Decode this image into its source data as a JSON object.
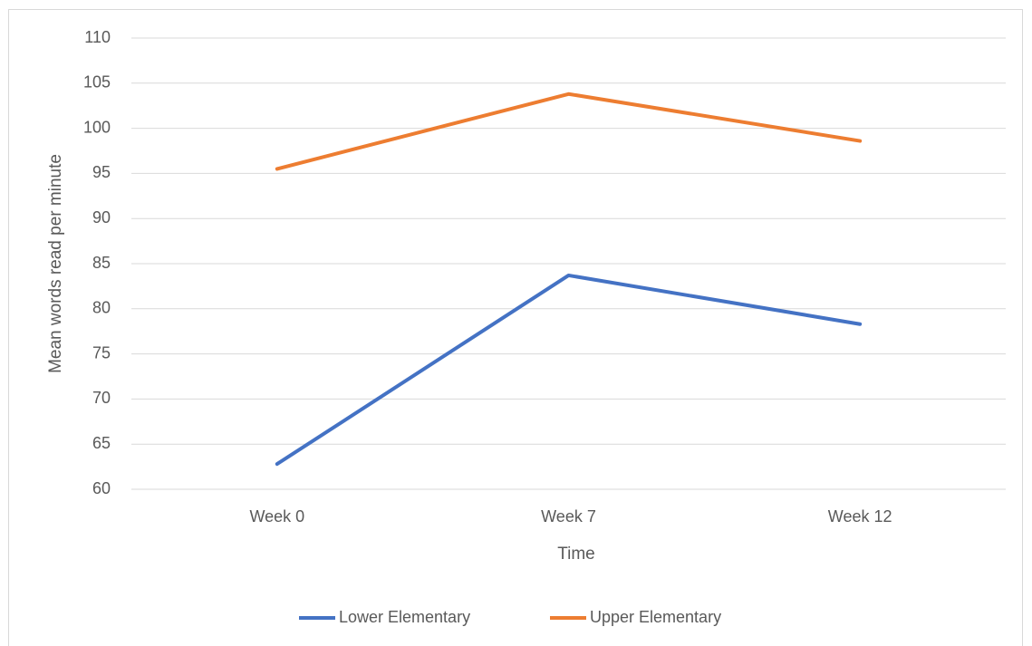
{
  "chart_data": {
    "type": "line",
    "x_label": "Time",
    "y_label": "Mean words read per minute",
    "categories": [
      "Week 0",
      "Week 7",
      "Week 12"
    ],
    "series": [
      {
        "name": "Lower Elementary",
        "color": "#4472c4",
        "values": [
          62.8,
          83.7,
          78.3
        ]
      },
      {
        "name": "Upper Elementary",
        "color": "#ed7d31",
        "values": [
          95.5,
          103.8,
          98.6
        ]
      }
    ],
    "ylim": [
      60,
      110
    ],
    "yticks": [
      60,
      65,
      70,
      75,
      80,
      85,
      90,
      95,
      100,
      105,
      110
    ],
    "grid": true,
    "legend": "bottom"
  }
}
